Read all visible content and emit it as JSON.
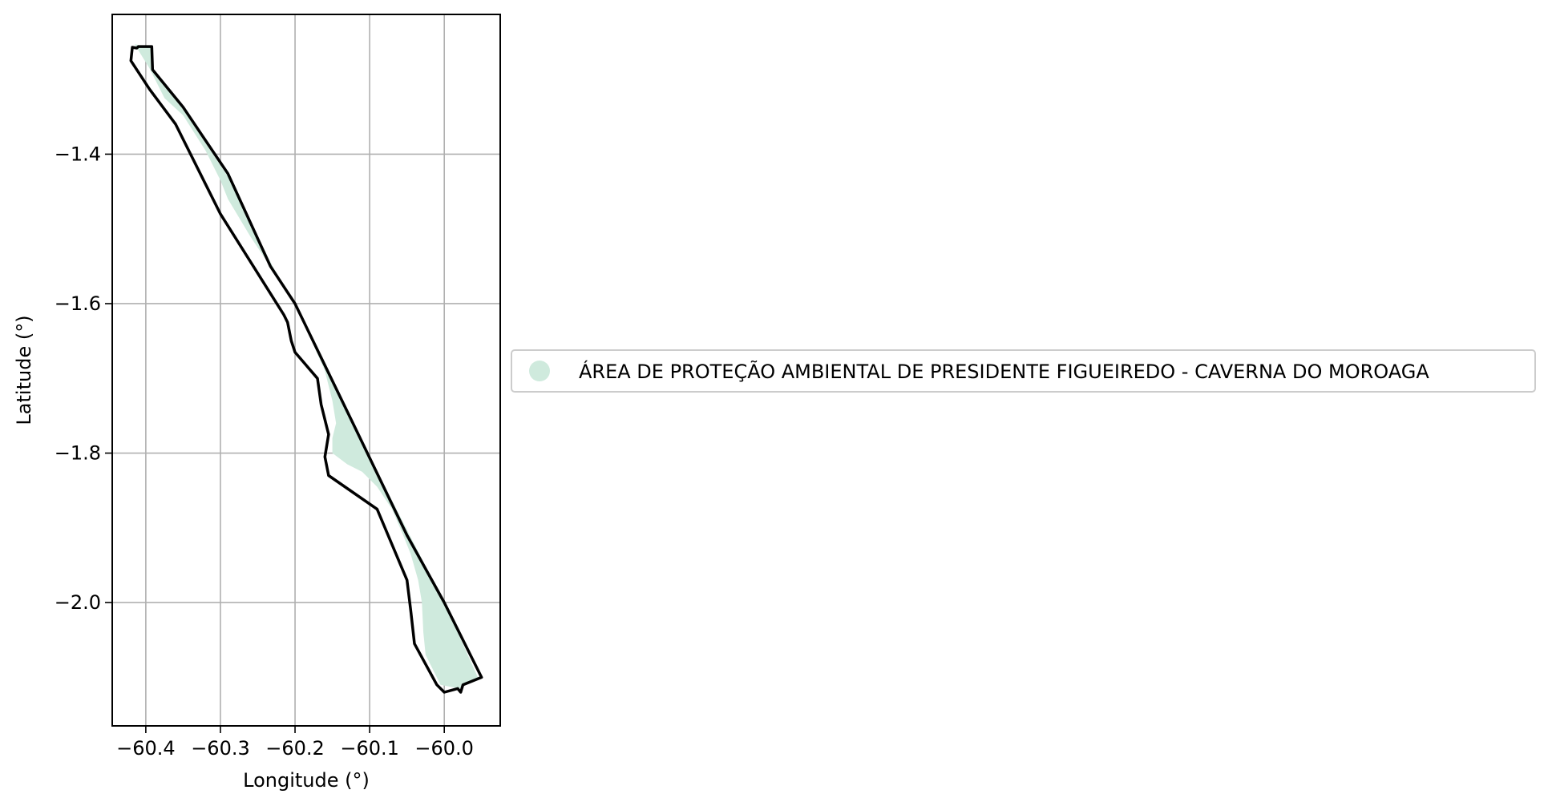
{
  "chart_data": {
    "type": "map",
    "xlabel": "Longitude (°)",
    "ylabel": "Latitude (°)",
    "xlim": [
      -60.445,
      -59.925
    ],
    "ylim": [
      -2.165,
      -1.213
    ],
    "xticks": [
      {
        "value": -60.4,
        "label": "−60.4"
      },
      {
        "value": -60.3,
        "label": "−60.3"
      },
      {
        "value": -60.2,
        "label": "−60.2"
      },
      {
        "value": -60.1,
        "label": "−60.1"
      },
      {
        "value": -60.0,
        "label": "−60.0"
      }
    ],
    "yticks": [
      {
        "value": -1.4,
        "label": "−1.4"
      },
      {
        "value": -1.6,
        "label": "−1.6"
      },
      {
        "value": -1.8,
        "label": "−1.8"
      },
      {
        "value": -2.0,
        "label": "−2.0"
      }
    ],
    "grid": true,
    "legend": {
      "placement": "right-center",
      "entries": [
        {
          "label": "ÁREA DE PROTEÇÃO AMBIENTAL DE PRESIDENTE FIGUEIREDO - CAVERNA DO MOROAGA",
          "color": "#cfeadd"
        }
      ]
    },
    "series": [
      {
        "geometry": "polygon",
        "fill": "#cfeadd",
        "coordinates": [
          [
            -60.415,
            -1.253
          ],
          [
            -60.395,
            -1.285
          ],
          [
            -60.375,
            -1.325
          ],
          [
            -60.35,
            -1.348
          ],
          [
            -60.32,
            -1.395
          ],
          [
            -60.3,
            -1.435
          ],
          [
            -60.29,
            -1.46
          ],
          [
            -60.26,
            -1.51
          ],
          [
            -60.23,
            -1.555
          ],
          [
            -60.2,
            -1.6
          ],
          [
            -60.18,
            -1.645
          ],
          [
            -60.16,
            -1.69
          ],
          [
            -60.15,
            -1.73
          ],
          [
            -60.145,
            -1.76
          ],
          [
            -60.15,
            -1.78
          ],
          [
            -60.15,
            -1.8
          ],
          [
            -60.13,
            -1.815
          ],
          [
            -60.11,
            -1.825
          ],
          [
            -60.09,
            -1.845
          ],
          [
            -60.07,
            -1.875
          ],
          [
            -60.055,
            -1.91
          ],
          [
            -60.045,
            -1.935
          ],
          [
            -60.035,
            -1.97
          ],
          [
            -60.03,
            -2.0
          ],
          [
            -60.028,
            -2.04
          ],
          [
            -60.025,
            -2.07
          ],
          [
            -60.015,
            -2.09
          ],
          [
            -60.005,
            -2.11
          ],
          [
            -59.98,
            -2.115
          ],
          [
            -59.955,
            -2.1
          ],
          [
            -60.0,
            -2.0
          ],
          [
            -60.1,
            -1.805
          ],
          [
            -60.2,
            -1.6
          ],
          [
            -60.23,
            -1.55
          ],
          [
            -60.29,
            -1.43
          ],
          [
            -60.35,
            -1.34
          ],
          [
            -60.39,
            -1.288
          ],
          [
            -60.39,
            -1.258
          ]
        ]
      },
      {
        "geometry": "boundary",
        "stroke": "#000000",
        "coordinates": [
          [
            -60.418,
            -1.257
          ],
          [
            -60.412,
            -1.258
          ],
          [
            -60.41,
            -1.256
          ],
          [
            -60.392,
            -1.256
          ],
          [
            -60.391,
            -1.287
          ],
          [
            -60.35,
            -1.337
          ],
          [
            -60.29,
            -1.426
          ],
          [
            -60.233,
            -1.55
          ],
          [
            -60.2,
            -1.6
          ],
          [
            -60.12,
            -1.765
          ],
          [
            -60.05,
            -1.91
          ],
          [
            -60.0,
            -2.0
          ],
          [
            -59.95,
            -2.1
          ],
          [
            -59.975,
            -2.11
          ],
          [
            -59.978,
            -2.12
          ],
          [
            -59.982,
            -2.115
          ],
          [
            -60.0,
            -2.12
          ],
          [
            -60.01,
            -2.11
          ],
          [
            -60.04,
            -2.055
          ],
          [
            -60.045,
            -2.01
          ],
          [
            -60.05,
            -1.97
          ],
          [
            -60.09,
            -1.875
          ],
          [
            -60.155,
            -1.83
          ],
          [
            -60.16,
            -1.805
          ],
          [
            -60.155,
            -1.775
          ],
          [
            -60.165,
            -1.735
          ],
          [
            -60.17,
            -1.7
          ],
          [
            -60.2,
            -1.665
          ],
          [
            -60.205,
            -1.65
          ],
          [
            -60.21,
            -1.625
          ],
          [
            -60.215,
            -1.615
          ],
          [
            -60.3,
            -1.48
          ],
          [
            -60.36,
            -1.36
          ],
          [
            -60.395,
            -1.313
          ],
          [
            -60.42,
            -1.275
          ],
          [
            -60.418,
            -1.257
          ]
        ]
      }
    ]
  }
}
